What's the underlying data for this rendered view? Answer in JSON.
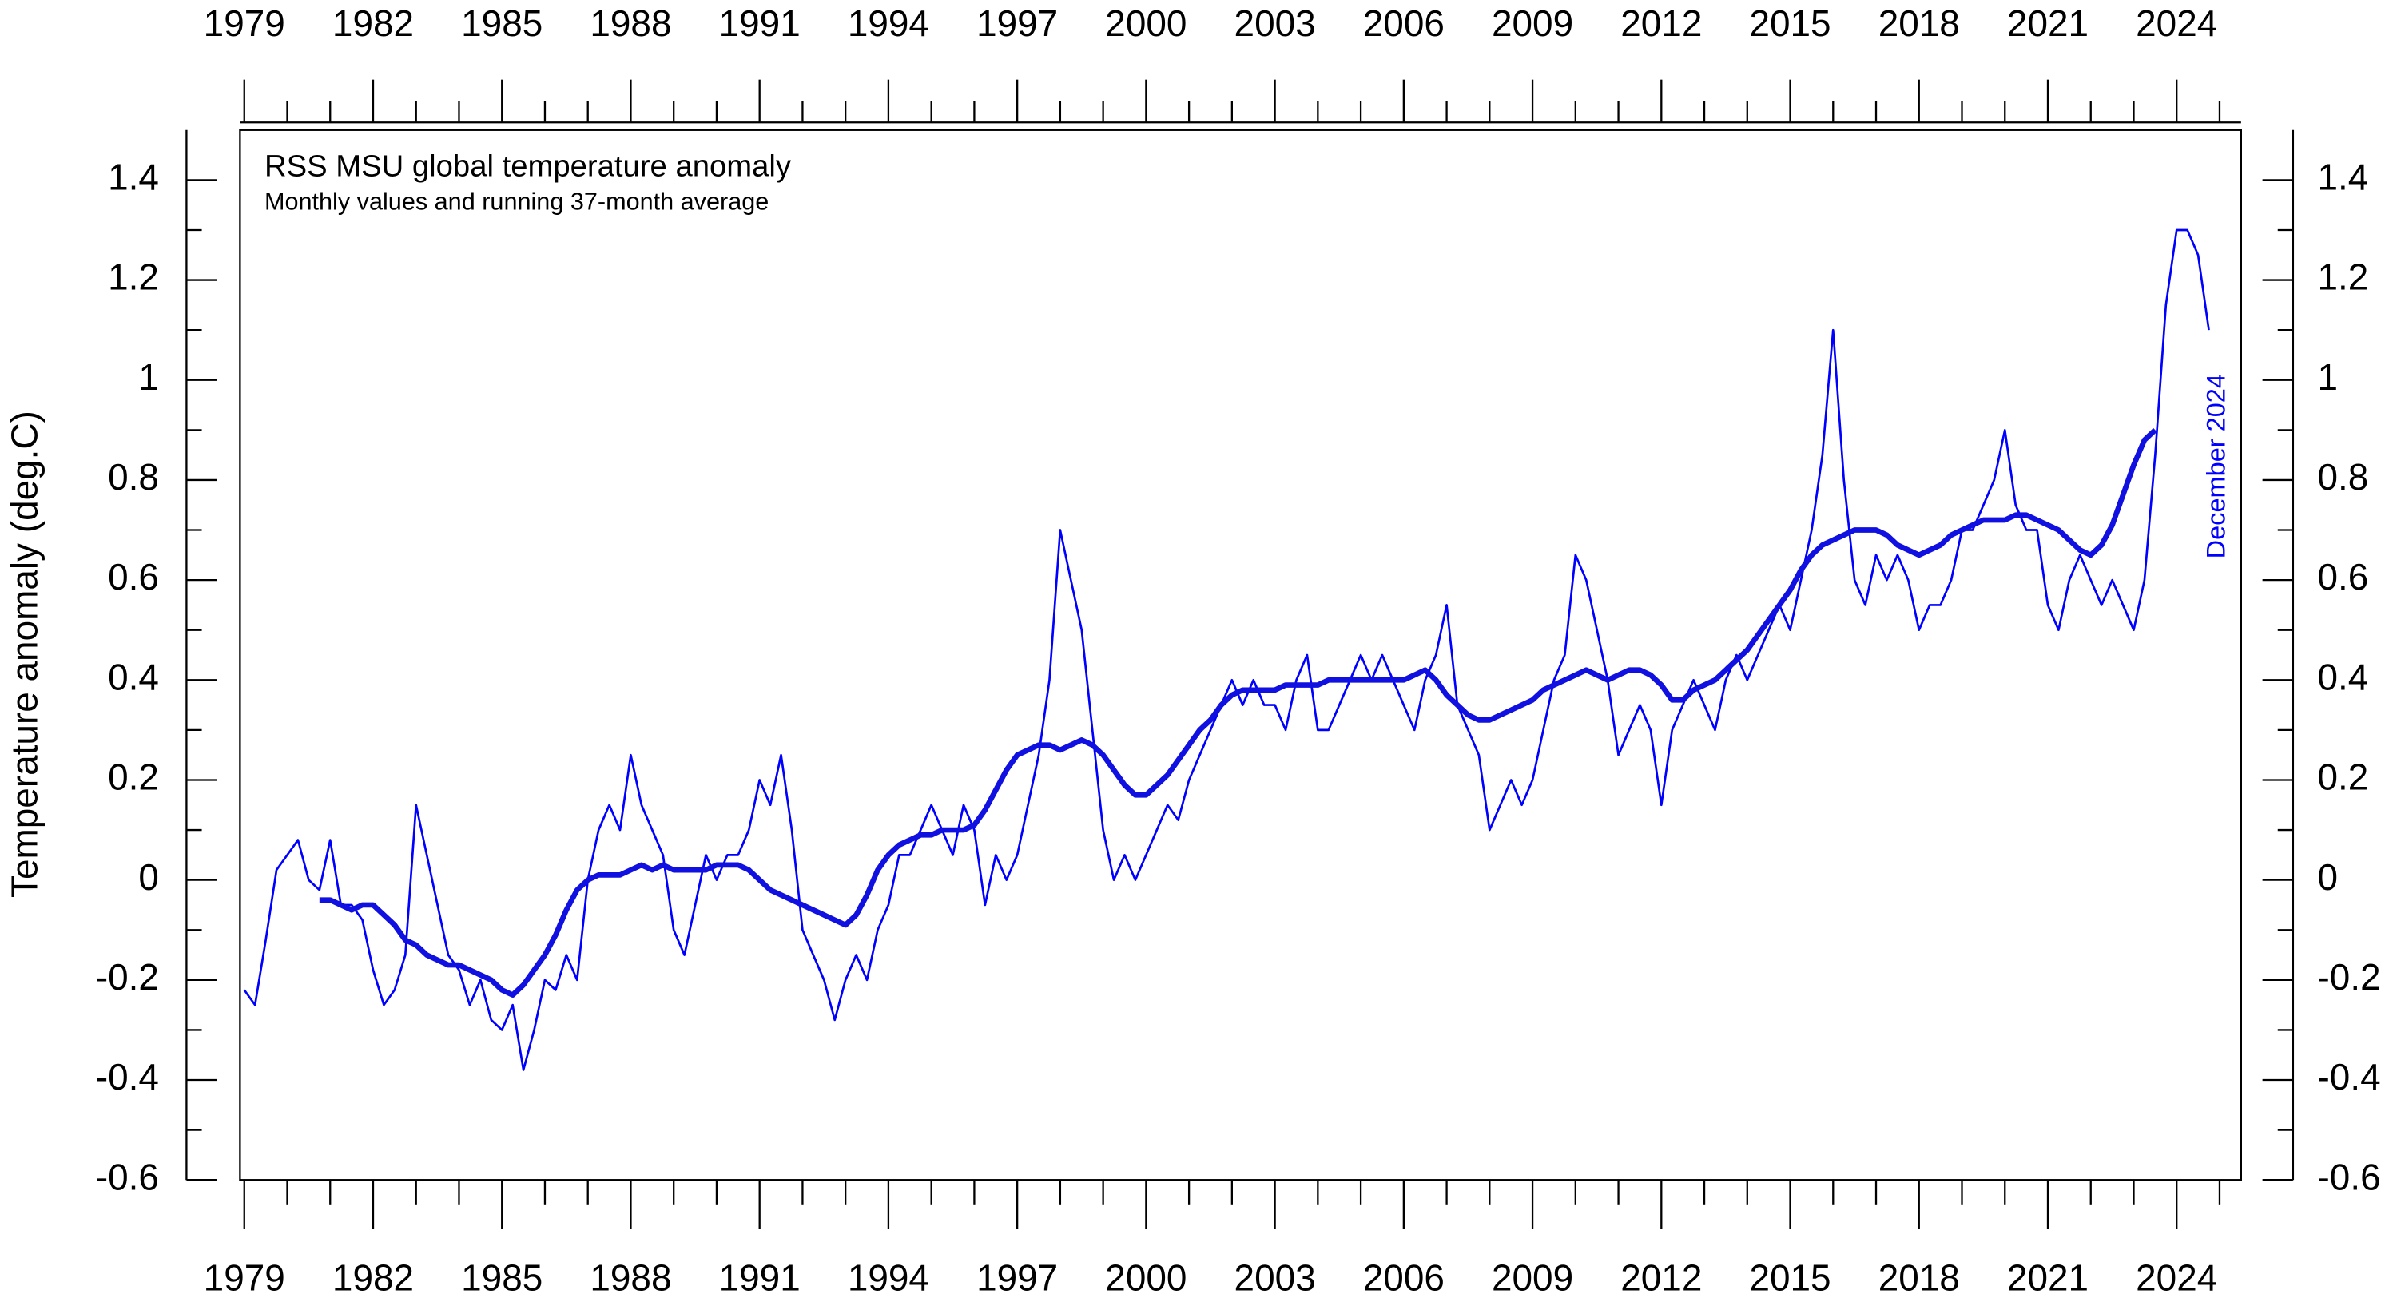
{
  "chart_data": {
    "type": "line",
    "title": "RSS MSU global temperature anomaly",
    "subtitle": "Monthly values and running 37-month average",
    "y_label": "Temperature anomaly (deg.C)",
    "annotation": "December 2024",
    "xlim": [
      1978.9,
      2025.5
    ],
    "xticks": [
      1979,
      1982,
      1985,
      1988,
      1991,
      1994,
      1997,
      2000,
      2003,
      2006,
      2009,
      2012,
      2015,
      2018,
      2021,
      2024
    ],
    "xticks_minor": [
      1980,
      1981,
      1983,
      1984,
      1986,
      1987,
      1989,
      1990,
      1992,
      1993,
      1995,
      1996,
      1998,
      1999,
      2001,
      2002,
      2004,
      2005,
      2007,
      2008,
      2010,
      2011,
      2013,
      2014,
      2016,
      2017,
      2019,
      2020,
      2022,
      2023,
      2025
    ],
    "ylim": [
      -0.6,
      1.5
    ],
    "yticks": [
      -0.6,
      -0.4,
      -0.2,
      0,
      0.2,
      0.4,
      0.6,
      0.8,
      1,
      1.2,
      1.4
    ],
    "yticks_minor": [
      -0.5,
      -0.3,
      -0.1,
      0.1,
      0.3,
      0.5,
      0.7,
      0.9,
      1.1,
      1.3
    ],
    "x": [
      1979,
      1979.25,
      1979.5,
      1979.75,
      1980,
      1980.25,
      1980.5,
      1980.75,
      1981,
      1981.25,
      1981.5,
      1981.75,
      1982,
      1982.25,
      1982.5,
      1982.75,
      1983,
      1983.25,
      1983.5,
      1983.75,
      1984,
      1984.25,
      1984.5,
      1984.75,
      1985,
      1985.25,
      1985.5,
      1985.75,
      1986,
      1986.25,
      1986.5,
      1986.75,
      1987,
      1987.25,
      1987.5,
      1987.75,
      1988,
      1988.25,
      1988.5,
      1988.75,
      1989,
      1989.25,
      1989.5,
      1989.75,
      1990,
      1990.25,
      1990.5,
      1990.75,
      1991,
      1991.25,
      1991.5,
      1991.75,
      1992,
      1992.25,
      1992.5,
      1992.75,
      1993,
      1993.25,
      1993.5,
      1993.75,
      1994,
      1994.25,
      1994.5,
      1994.75,
      1995,
      1995.25,
      1995.5,
      1995.75,
      1996,
      1996.25,
      1996.5,
      1996.75,
      1997,
      1997.25,
      1997.5,
      1997.75,
      1998,
      1998.25,
      1998.5,
      1998.75,
      1999,
      1999.25,
      1999.5,
      1999.75,
      2000,
      2000.25,
      2000.5,
      2000.75,
      2001,
      2001.25,
      2001.5,
      2001.75,
      2002,
      2002.25,
      2002.5,
      2002.75,
      2003,
      2003.25,
      2003.5,
      2003.75,
      2004,
      2004.25,
      2004.5,
      2004.75,
      2005,
      2005.25,
      2005.5,
      2005.75,
      2006,
      2006.25,
      2006.5,
      2006.75,
      2007,
      2007.25,
      2007.5,
      2007.75,
      2008,
      2008.25,
      2008.5,
      2008.75,
      2009,
      2009.25,
      2009.5,
      2009.75,
      2010,
      2010.25,
      2010.5,
      2010.75,
      2011,
      2011.25,
      2011.5,
      2011.75,
      2012,
      2012.25,
      2012.5,
      2012.75,
      2013,
      2013.25,
      2013.5,
      2013.75,
      2014,
      2014.25,
      2014.5,
      2014.75,
      2015,
      2015.25,
      2015.5,
      2015.75,
      2016,
      2016.25,
      2016.5,
      2016.75,
      2017,
      2017.25,
      2017.5,
      2017.75,
      2018,
      2018.25,
      2018.5,
      2018.75,
      2019,
      2019.25,
      2019.5,
      2019.75,
      2020,
      2020.25,
      2020.5,
      2020.75,
      2021,
      2021.25,
      2021.5,
      2021.75,
      2022,
      2022.25,
      2022.5,
      2022.75,
      2023,
      2023.25,
      2023.5,
      2023.75,
      2024,
      2024.25,
      2024.5,
      2024.75
    ],
    "series": [
      {
        "color": "#0000ff",
        "width": 1.4,
        "values": [
          -0.22,
          -0.25,
          -0.12,
          0.02,
          0.05,
          0.08,
          0.0,
          -0.02,
          0.08,
          -0.05,
          -0.05,
          -0.08,
          -0.18,
          -0.25,
          -0.22,
          -0.15,
          0.15,
          0.05,
          -0.05,
          -0.15,
          -0.18,
          -0.25,
          -0.2,
          -0.28,
          -0.3,
          -0.25,
          -0.38,
          -0.3,
          -0.2,
          -0.22,
          -0.15,
          -0.2,
          0.0,
          0.1,
          0.15,
          0.1,
          0.25,
          0.15,
          0.1,
          0.05,
          -0.1,
          -0.15,
          -0.05,
          0.05,
          0.0,
          0.05,
          0.05,
          0.1,
          0.2,
          0.15,
          0.25,
          0.1,
          -0.1,
          -0.15,
          -0.2,
          -0.28,
          -0.2,
          -0.15,
          -0.2,
          -0.1,
          -0.05,
          0.05,
          0.05,
          0.1,
          0.15,
          0.1,
          0.05,
          0.15,
          0.1,
          -0.05,
          0.05,
          0.0,
          0.05,
          0.15,
          0.25,
          0.4,
          0.7,
          0.6,
          0.5,
          0.3,
          0.1,
          0.0,
          0.05,
          0.0,
          0.05,
          0.1,
          0.15,
          0.12,
          0.2,
          0.25,
          0.3,
          0.35,
          0.4,
          0.35,
          0.4,
          0.35,
          0.35,
          0.3,
          0.4,
          0.45,
          0.3,
          0.3,
          0.35,
          0.4,
          0.45,
          0.4,
          0.45,
          0.4,
          0.35,
          0.3,
          0.4,
          0.45,
          0.55,
          0.35,
          0.3,
          0.25,
          0.1,
          0.15,
          0.2,
          0.15,
          0.2,
          0.3,
          0.4,
          0.45,
          0.65,
          0.6,
          0.5,
          0.4,
          0.25,
          0.3,
          0.35,
          0.3,
          0.15,
          0.3,
          0.35,
          0.4,
          0.35,
          0.3,
          0.4,
          0.45,
          0.4,
          0.45,
          0.5,
          0.55,
          0.5,
          0.6,
          0.7,
          0.85,
          1.1,
          0.8,
          0.6,
          0.55,
          0.65,
          0.6,
          0.65,
          0.6,
          0.5,
          0.55,
          0.55,
          0.6,
          0.7,
          0.7,
          0.75,
          0.8,
          0.9,
          0.75,
          0.7,
          0.7,
          0.55,
          0.5,
          0.6,
          0.65,
          0.6,
          0.55,
          0.6,
          0.55,
          0.5,
          0.6,
          0.85,
          1.15,
          1.3,
          1.3,
          1.25,
          1.1
        ]
      },
      {
        "color": "#1010e0",
        "width": 3.5,
        "values": [
          null,
          null,
          null,
          null,
          null,
          null,
          null,
          -0.04,
          -0.04,
          -0.05,
          -0.06,
          -0.05,
          -0.05,
          -0.07,
          -0.09,
          -0.12,
          -0.13,
          -0.15,
          -0.16,
          -0.17,
          -0.17,
          -0.18,
          -0.19,
          -0.2,
          -0.22,
          -0.23,
          -0.21,
          -0.18,
          -0.15,
          -0.11,
          -0.06,
          -0.02,
          0.0,
          0.01,
          0.01,
          0.01,
          0.02,
          0.03,
          0.02,
          0.03,
          0.02,
          0.02,
          0.02,
          0.02,
          0.03,
          0.03,
          0.03,
          0.02,
          0.0,
          -0.02,
          -0.03,
          -0.04,
          -0.05,
          -0.06,
          -0.07,
          -0.08,
          -0.09,
          -0.07,
          -0.03,
          0.02,
          0.05,
          0.07,
          0.08,
          0.09,
          0.09,
          0.1,
          0.1,
          0.1,
          0.11,
          0.14,
          0.18,
          0.22,
          0.25,
          0.26,
          0.27,
          0.27,
          0.26,
          0.27,
          0.28,
          0.27,
          0.25,
          0.22,
          0.19,
          0.17,
          0.17,
          0.19,
          0.21,
          0.24,
          0.27,
          0.3,
          0.32,
          0.35,
          0.37,
          0.38,
          0.38,
          0.38,
          0.38,
          0.39,
          0.39,
          0.39,
          0.39,
          0.4,
          0.4,
          0.4,
          0.4,
          0.4,
          0.4,
          0.4,
          0.4,
          0.41,
          0.42,
          0.4,
          0.37,
          0.35,
          0.33,
          0.32,
          0.32,
          0.33,
          0.34,
          0.35,
          0.36,
          0.38,
          0.39,
          0.4,
          0.41,
          0.42,
          0.41,
          0.4,
          0.41,
          0.42,
          0.42,
          0.41,
          0.39,
          0.36,
          0.36,
          0.38,
          0.39,
          0.4,
          0.42,
          0.44,
          0.46,
          0.49,
          0.52,
          0.55,
          0.58,
          0.62,
          0.65,
          0.67,
          0.68,
          0.69,
          0.7,
          0.7,
          0.7,
          0.69,
          0.67,
          0.66,
          0.65,
          0.66,
          0.67,
          0.69,
          0.7,
          0.71,
          0.72,
          0.72,
          0.72,
          0.73,
          0.73,
          0.72,
          0.71,
          0.7,
          0.68,
          0.66,
          0.65,
          0.67,
          0.71,
          0.77,
          0.83,
          0.88,
          0.9,
          null,
          null,
          null,
          null,
          null
        ]
      }
    ]
  }
}
